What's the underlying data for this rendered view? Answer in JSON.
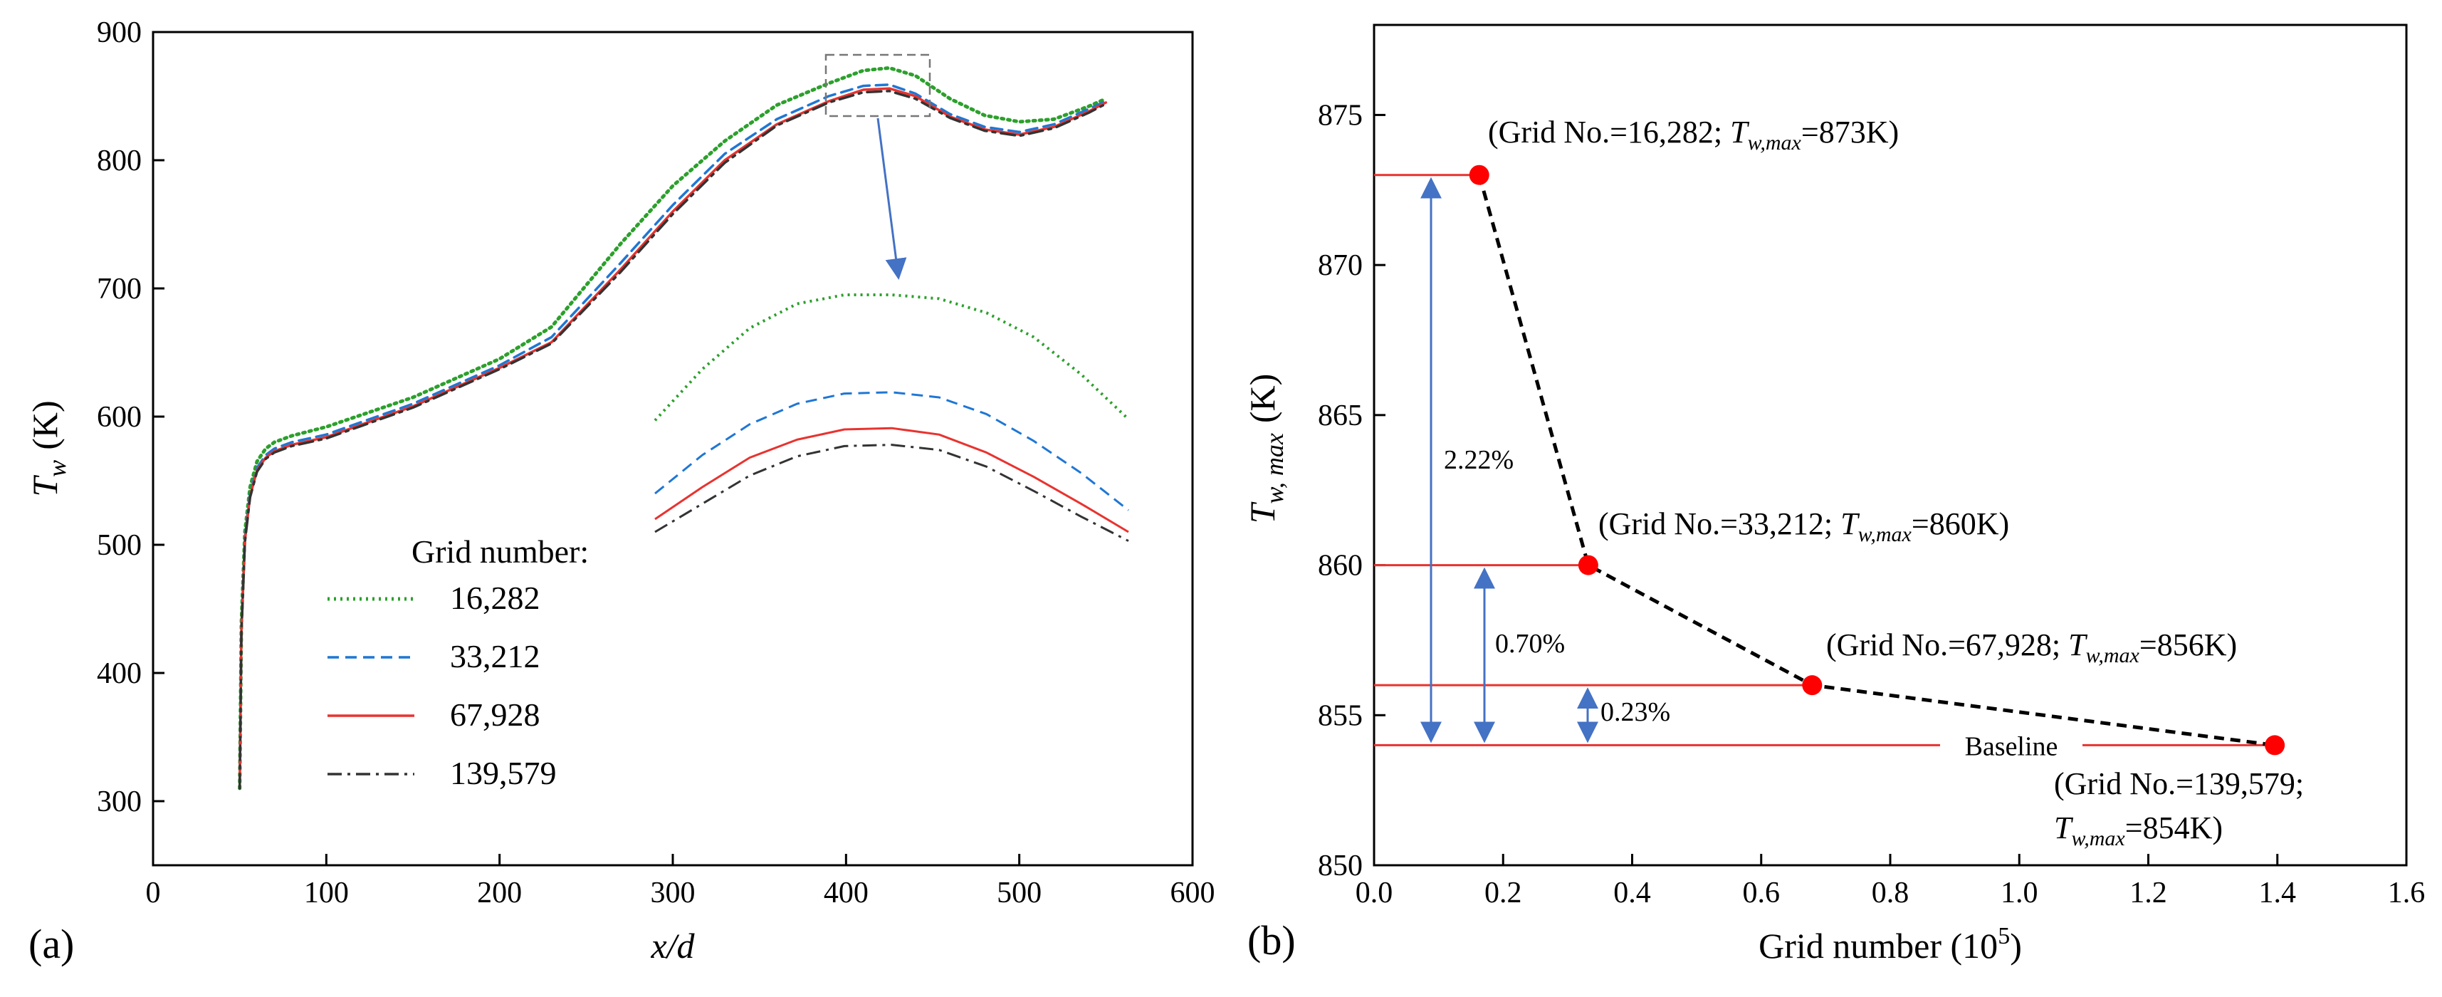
{
  "chart_data": [
    {
      "type": "line",
      "panel_label": "(a)",
      "xlabel": "x/d",
      "ylabel_main": "T",
      "ylabel_sub": "w",
      "ylabel_unit": "(K)",
      "xlim": [
        0,
        600
      ],
      "ylim": [
        250,
        900
      ],
      "xticks": [
        0,
        100,
        200,
        300,
        400,
        500,
        600
      ],
      "yticks": [
        300,
        400,
        500,
        600,
        700,
        800,
        900
      ],
      "legend_title": "Grid number:",
      "legend_position": "lower-left",
      "x": [
        50,
        51,
        53,
        56,
        60,
        65,
        70,
        80,
        100,
        150,
        200,
        230,
        270,
        300,
        330,
        360,
        390,
        410,
        425,
        440,
        460,
        480,
        500,
        520,
        540,
        550
      ],
      "series": [
        {
          "name": "16,282",
          "color": "#2ca02c",
          "style": "dotted",
          "values": [
            310,
            440,
            510,
            545,
            565,
            575,
            580,
            585,
            592,
            615,
            645,
            670,
            735,
            780,
            815,
            843,
            860,
            870,
            872,
            866,
            848,
            835,
            830,
            832,
            842,
            848
          ]
        },
        {
          "name": "33,212",
          "color": "#1f77d4",
          "style": "dashed",
          "values": [
            310,
            435,
            505,
            540,
            560,
            570,
            575,
            580,
            586,
            610,
            640,
            662,
            720,
            765,
            805,
            832,
            850,
            858,
            859,
            852,
            836,
            826,
            822,
            828,
            840,
            846
          ]
        },
        {
          "name": "67,928",
          "color": "#e8332f",
          "style": "solid",
          "values": [
            310,
            433,
            503,
            538,
            558,
            568,
            573,
            578,
            584,
            608,
            638,
            658,
            715,
            760,
            800,
            828,
            846,
            855,
            856,
            850,
            834,
            824,
            820,
            826,
            838,
            845
          ]
        },
        {
          "name": "139,579",
          "color": "#333333",
          "style": "dashdot",
          "values": [
            310,
            432,
            502,
            537,
            557,
            567,
            572,
            577,
            583,
            607,
            637,
            657,
            713,
            758,
            798,
            827,
            845,
            853,
            854,
            848,
            833,
            823,
            819,
            825,
            837,
            844
          ]
        }
      ],
      "inset": {
        "source_x": [
          388,
          448
        ],
        "source_y": [
          838,
          882
        ],
        "x": [
          0,
          0.1,
          0.2,
          0.3,
          0.4,
          0.5,
          0.6,
          0.7,
          0.8,
          0.9,
          1.0
        ],
        "series_values": [
          [
            597,
            637,
            669,
            688,
            695,
            695,
            692,
            681,
            662,
            633,
            598
          ],
          [
            540,
            570,
            594,
            610,
            618,
            619,
            615,
            602,
            581,
            556,
            527
          ],
          [
            520,
            545,
            568,
            582,
            590,
            591,
            586,
            572,
            553,
            532,
            510
          ],
          [
            510,
            532,
            554,
            569,
            577,
            578,
            574,
            561,
            542,
            522,
            503
          ]
        ]
      }
    },
    {
      "type": "scatter",
      "panel_label": "(b)",
      "xlabel_text": "Grid number (10",
      "xlabel_exp": "5",
      "xlabel_close": ")",
      "ylabel_main": "T",
      "ylabel_sub": "w, max",
      "ylabel_unit": "(K)",
      "xlim": [
        0,
        1.6
      ],
      "ylim": [
        850,
        878
      ],
      "xticks": [
        "0.0",
        "0.2",
        "0.4",
        "0.6",
        "0.8",
        "1.0",
        "1.2",
        "1.4",
        "1.6"
      ],
      "yticks": [
        "850",
        "855",
        "860",
        "865",
        "870",
        "875"
      ],
      "points": [
        {
          "x": 0.163,
          "y": 873,
          "label_prefix": "(Grid No.=16,282; ",
          "label_suffix": "=873K)"
        },
        {
          "x": 0.332,
          "y": 860,
          "label_prefix": "(Grid No.=33,212; ",
          "label_suffix": "=860K)"
        },
        {
          "x": 0.679,
          "y": 856,
          "label_prefix": "(Grid No.=67,928; ",
          "label_suffix": "=856K)"
        },
        {
          "x": 1.396,
          "y": 854,
          "label_prefix": "(Grid No.=139,579;",
          "label_suffix": "=854K)"
        }
      ],
      "label_var": "T",
      "label_var_sub": "w,max",
      "baseline_label": "Baseline",
      "differences": [
        {
          "from": 873,
          "to": 854,
          "label": "2.22%"
        },
        {
          "from": 860,
          "to": 854,
          "label": "0.70%"
        },
        {
          "from": 856,
          "to": 854,
          "label": "0.23%"
        }
      ],
      "marker_color": "#ff0000",
      "line_color": "#e8332f",
      "arrow_color": "#4472c4"
    }
  ]
}
